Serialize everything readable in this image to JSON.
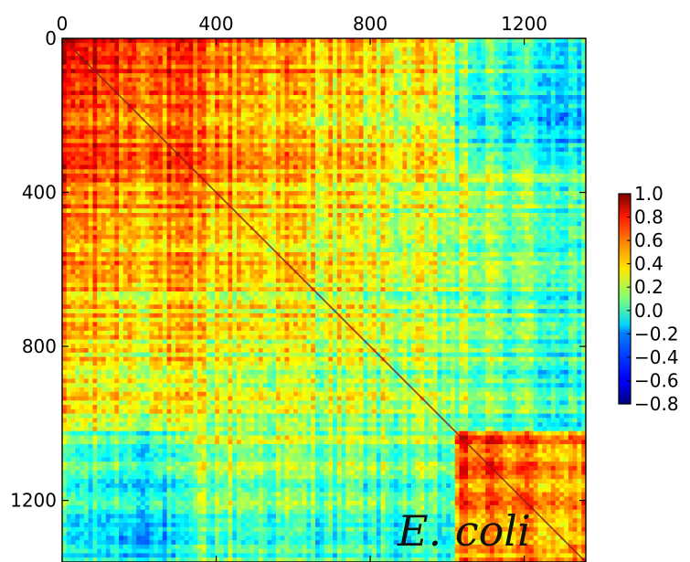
{
  "chart_data": {
    "type": "heatmap",
    "annotation": "E. coli",
    "n": 1360,
    "xlim": [
      0,
      1360
    ],
    "ylim": [
      1360,
      0
    ],
    "xticks": [
      0,
      400,
      800,
      1200
    ],
    "xtick_labels": [
      "0",
      "400",
      "800",
      "1200"
    ],
    "yticks": [
      0,
      400,
      800,
      1200
    ],
    "ytick_labels": [
      "0",
      "400",
      "800",
      "1200"
    ],
    "colorbar": {
      "range": [
        -0.8,
        1.0
      ],
      "ticks": [
        1.0,
        0.8,
        0.6,
        0.4,
        0.2,
        0.0,
        -0.2,
        -0.4,
        -0.6,
        -0.8
      ],
      "tick_labels": [
        "1.0",
        "0.8",
        "0.6",
        "0.4",
        "0.2",
        "0.0",
        "−0.2",
        "−0.4",
        "−0.6",
        "−0.8"
      ]
    },
    "colormap": "jet",
    "diagonal_value": 1.0,
    "grid": false,
    "legend": "none"
  }
}
